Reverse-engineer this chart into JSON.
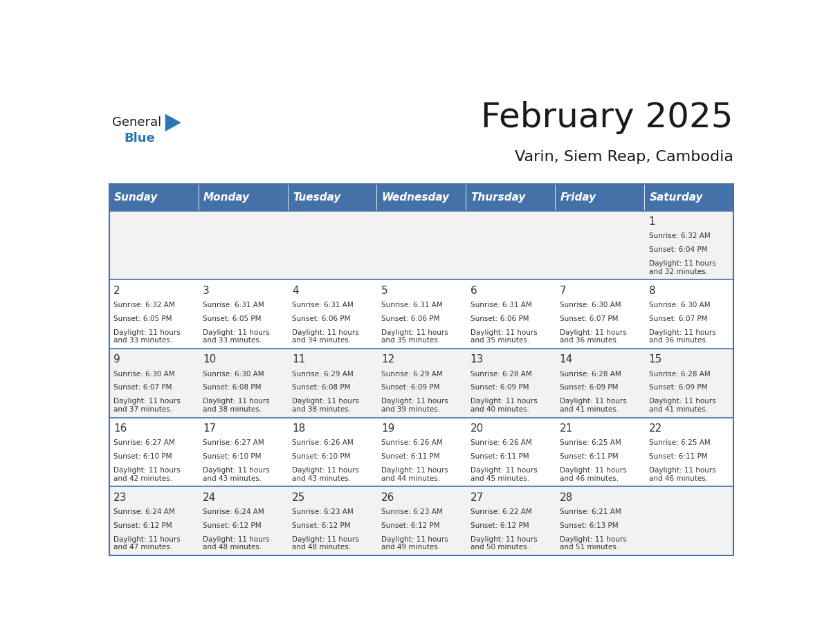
{
  "title": "February 2025",
  "subtitle": "Varin, Siem Reap, Cambodia",
  "header_bg": "#4472A8",
  "header_text": "#FFFFFF",
  "cell_bg_light": "#F2F2F2",
  "cell_bg_white": "#FFFFFF",
  "separator_color": "#4472A8",
  "day_headers": [
    "Sunday",
    "Monday",
    "Tuesday",
    "Wednesday",
    "Thursday",
    "Friday",
    "Saturday"
  ],
  "general_text_color": "#1A1A1A",
  "general_blue_color": "#2E75B6",
  "days": [
    {
      "day": 1,
      "col": 6,
      "row": 0,
      "sunrise": "6:32 AM",
      "sunset": "6:04 PM",
      "daylight": "11 hours and 32 minutes"
    },
    {
      "day": 2,
      "col": 0,
      "row": 1,
      "sunrise": "6:32 AM",
      "sunset": "6:05 PM",
      "daylight": "11 hours and 33 minutes"
    },
    {
      "day": 3,
      "col": 1,
      "row": 1,
      "sunrise": "6:31 AM",
      "sunset": "6:05 PM",
      "daylight": "11 hours and 33 minutes"
    },
    {
      "day": 4,
      "col": 2,
      "row": 1,
      "sunrise": "6:31 AM",
      "sunset": "6:06 PM",
      "daylight": "11 hours and 34 minutes"
    },
    {
      "day": 5,
      "col": 3,
      "row": 1,
      "sunrise": "6:31 AM",
      "sunset": "6:06 PM",
      "daylight": "11 hours and 35 minutes"
    },
    {
      "day": 6,
      "col": 4,
      "row": 1,
      "sunrise": "6:31 AM",
      "sunset": "6:06 PM",
      "daylight": "11 hours and 35 minutes"
    },
    {
      "day": 7,
      "col": 5,
      "row": 1,
      "sunrise": "6:30 AM",
      "sunset": "6:07 PM",
      "daylight": "11 hours and 36 minutes"
    },
    {
      "day": 8,
      "col": 6,
      "row": 1,
      "sunrise": "6:30 AM",
      "sunset": "6:07 PM",
      "daylight": "11 hours and 36 minutes"
    },
    {
      "day": 9,
      "col": 0,
      "row": 2,
      "sunrise": "6:30 AM",
      "sunset": "6:07 PM",
      "daylight": "11 hours and 37 minutes"
    },
    {
      "day": 10,
      "col": 1,
      "row": 2,
      "sunrise": "6:30 AM",
      "sunset": "6:08 PM",
      "daylight": "11 hours and 38 minutes"
    },
    {
      "day": 11,
      "col": 2,
      "row": 2,
      "sunrise": "6:29 AM",
      "sunset": "6:08 PM",
      "daylight": "11 hours and 38 minutes"
    },
    {
      "day": 12,
      "col": 3,
      "row": 2,
      "sunrise": "6:29 AM",
      "sunset": "6:09 PM",
      "daylight": "11 hours and 39 minutes"
    },
    {
      "day": 13,
      "col": 4,
      "row": 2,
      "sunrise": "6:28 AM",
      "sunset": "6:09 PM",
      "daylight": "11 hours and 40 minutes"
    },
    {
      "day": 14,
      "col": 5,
      "row": 2,
      "sunrise": "6:28 AM",
      "sunset": "6:09 PM",
      "daylight": "11 hours and 41 minutes"
    },
    {
      "day": 15,
      "col": 6,
      "row": 2,
      "sunrise": "6:28 AM",
      "sunset": "6:09 PM",
      "daylight": "11 hours and 41 minutes"
    },
    {
      "day": 16,
      "col": 0,
      "row": 3,
      "sunrise": "6:27 AM",
      "sunset": "6:10 PM",
      "daylight": "11 hours and 42 minutes"
    },
    {
      "day": 17,
      "col": 1,
      "row": 3,
      "sunrise": "6:27 AM",
      "sunset": "6:10 PM",
      "daylight": "11 hours and 43 minutes"
    },
    {
      "day": 18,
      "col": 2,
      "row": 3,
      "sunrise": "6:26 AM",
      "sunset": "6:10 PM",
      "daylight": "11 hours and 43 minutes"
    },
    {
      "day": 19,
      "col": 3,
      "row": 3,
      "sunrise": "6:26 AM",
      "sunset": "6:11 PM",
      "daylight": "11 hours and 44 minutes"
    },
    {
      "day": 20,
      "col": 4,
      "row": 3,
      "sunrise": "6:26 AM",
      "sunset": "6:11 PM",
      "daylight": "11 hours and 45 minutes"
    },
    {
      "day": 21,
      "col": 5,
      "row": 3,
      "sunrise": "6:25 AM",
      "sunset": "6:11 PM",
      "daylight": "11 hours and 46 minutes"
    },
    {
      "day": 22,
      "col": 6,
      "row": 3,
      "sunrise": "6:25 AM",
      "sunset": "6:11 PM",
      "daylight": "11 hours and 46 minutes"
    },
    {
      "day": 23,
      "col": 0,
      "row": 4,
      "sunrise": "6:24 AM",
      "sunset": "6:12 PM",
      "daylight": "11 hours and 47 minutes"
    },
    {
      "day": 24,
      "col": 1,
      "row": 4,
      "sunrise": "6:24 AM",
      "sunset": "6:12 PM",
      "daylight": "11 hours and 48 minutes"
    },
    {
      "day": 25,
      "col": 2,
      "row": 4,
      "sunrise": "6:23 AM",
      "sunset": "6:12 PM",
      "daylight": "11 hours and 48 minutes"
    },
    {
      "day": 26,
      "col": 3,
      "row": 4,
      "sunrise": "6:23 AM",
      "sunset": "6:12 PM",
      "daylight": "11 hours and 49 minutes"
    },
    {
      "day": 27,
      "col": 4,
      "row": 4,
      "sunrise": "6:22 AM",
      "sunset": "6:12 PM",
      "daylight": "11 hours and 50 minutes"
    },
    {
      "day": 28,
      "col": 5,
      "row": 4,
      "sunrise": "6:21 AM",
      "sunset": "6:13 PM",
      "daylight": "11 hours and 51 minutes"
    }
  ]
}
